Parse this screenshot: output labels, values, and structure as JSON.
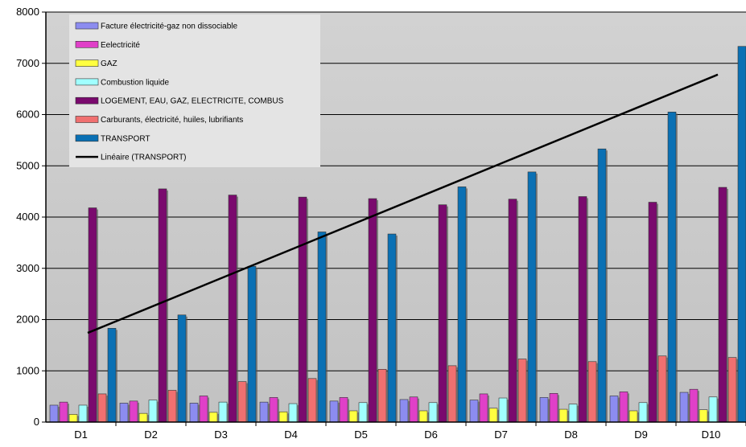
{
  "chart_data": {
    "type": "bar",
    "title": "",
    "xlabel": "",
    "ylabel": "",
    "ylim": [
      0,
      8000
    ],
    "yticks": [
      0,
      1000,
      2000,
      3000,
      4000,
      5000,
      6000,
      7000,
      8000
    ],
    "grid": true,
    "legend_position": "top-left",
    "categories": [
      "D1",
      "D2",
      "D3",
      "D4",
      "D5",
      "D6",
      "D7",
      "D8",
      "D9",
      "D10"
    ],
    "series": [
      {
        "name": "Facture électricité-gaz non dissociable",
        "color": "#8c8cf0",
        "values": [
          330,
          370,
          370,
          390,
          410,
          440,
          430,
          480,
          510,
          580
        ]
      },
      {
        "name": "Eelectricité",
        "color": "#e040c8",
        "values": [
          390,
          410,
          510,
          480,
          480,
          490,
          550,
          560,
          590,
          640
        ]
      },
      {
        "name": "GAZ",
        "color": "#ffff40",
        "values": [
          150,
          170,
          190,
          200,
          220,
          220,
          270,
          250,
          220,
          240
        ]
      },
      {
        "name": "Combustion liquide",
        "color": "#a0ffff",
        "values": [
          330,
          430,
          390,
          360,
          380,
          380,
          470,
          350,
          380,
          490
        ]
      },
      {
        "name": "LOGEMENT, EAU, GAZ, ELECTRICITE, COMBUS",
        "color": "#7a0a6e",
        "values": [
          4180,
          4550,
          4430,
          4390,
          4360,
          4240,
          4350,
          4400,
          4290,
          4580
        ]
      },
      {
        "name": "Carburants, électricité, huiles, lubrifiants",
        "color": "#f07070",
        "values": [
          550,
          620,
          790,
          850,
          1030,
          1100,
          1230,
          1180,
          1290,
          1260
        ]
      },
      {
        "name": "TRANSPORT",
        "color": "#0a70b4",
        "values": [
          1830,
          2090,
          3040,
          3710,
          3670,
          4590,
          4880,
          5330,
          6050,
          7330
        ]
      }
    ],
    "trendline": {
      "name": "Linéaire (TRANSPORT)",
      "color": "#000000",
      "start": 1740,
      "end": 6780
    }
  }
}
